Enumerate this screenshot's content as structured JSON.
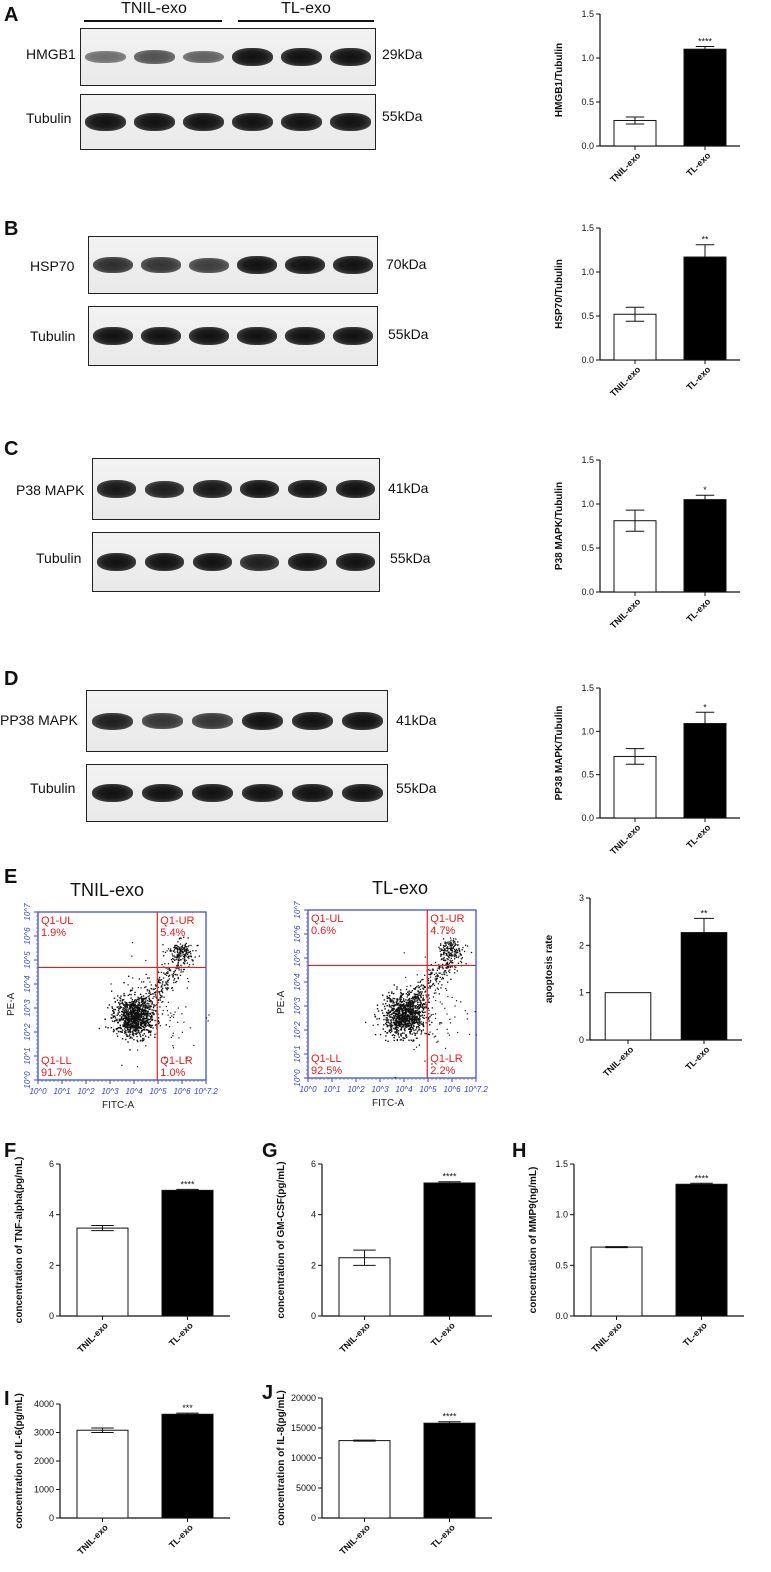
{
  "panels": {
    "A": {
      "letter": "A",
      "groups": [
        "TNIL-exo",
        "TL-exo"
      ],
      "rows": [
        {
          "protein": "HMGB1",
          "kda": "29kDa",
          "intensity": [
            0.35,
            0.55,
            0.45,
            1.0,
            1.0,
            1.0
          ]
        },
        {
          "protein": "Tubulin",
          "kda": "55kDa",
          "intensity": [
            1.0,
            1.0,
            1.0,
            1.0,
            1.0,
            1.0
          ]
        }
      ]
    },
    "B": {
      "letter": "B",
      "rows": [
        {
          "protein": "HSP70",
          "kda": "70kDa",
          "intensity": [
            0.8,
            0.75,
            0.7,
            1.0,
            1.0,
            1.0
          ]
        },
        {
          "protein": "Tubulin",
          "kda": "55kDa",
          "intensity": [
            1.0,
            1.0,
            1.0,
            1.0,
            1.0,
            1.0
          ]
        }
      ]
    },
    "C": {
      "letter": "C",
      "rows": [
        {
          "protein": "P38 MAPK",
          "kda": "41kDa",
          "intensity": [
            0.95,
            0.9,
            0.95,
            1.0,
            1.0,
            1.0
          ]
        },
        {
          "protein": "Tubulin",
          "kda": "55kDa",
          "intensity": [
            1.0,
            1.0,
            1.0,
            0.9,
            1.0,
            1.0
          ]
        }
      ]
    },
    "D": {
      "letter": "D",
      "rows": [
        {
          "protein": "PP38 MAPK",
          "kda": "41kDa",
          "intensity": [
            0.9,
            0.75,
            0.75,
            1.0,
            1.0,
            1.0
          ]
        },
        {
          "protein": "Tubulin",
          "kda": "55kDa",
          "intensity": [
            1.0,
            1.0,
            1.0,
            1.0,
            1.0,
            1.0
          ]
        }
      ]
    },
    "E": {
      "letter": "E",
      "flow": [
        {
          "title": "TNIL-exo",
          "UL": "Q1-UL",
          "UL_pct": "1.9%",
          "UR": "Q1-UR",
          "UR_pct": "5.4%",
          "LL": "Q1-LL",
          "LL_pct": "91.7%",
          "LR": "Q1-LR",
          "LR_pct": "1.0%"
        },
        {
          "title": "TL-exo",
          "UL": "Q1-UL",
          "UL_pct": "0.6%",
          "UR": "Q1-UR",
          "UR_pct": "4.7%",
          "LL": "Q1-LL",
          "LL_pct": "92.5%",
          "LR": "Q1-LR",
          "LR_pct": "2.2%"
        }
      ],
      "flow_xlabel": "FITC-A",
      "flow_ylabel": "PE-A",
      "flow_xticks": [
        "10^0",
        "10^1",
        "10^2",
        "10^3",
        "10^4",
        "10^5",
        "10^6",
        "10^7.2"
      ],
      "flow_yticks": [
        "10^0",
        "10^1",
        "10^2",
        "10^3",
        "10^4",
        "10^5",
        "10^6",
        "10^7"
      ]
    },
    "F": {
      "letter": "F"
    },
    "G": {
      "letter": "G"
    },
    "H": {
      "letter": "H"
    },
    "I": {
      "letter": "I"
    },
    "J": {
      "letter": "J"
    }
  },
  "chart_data": [
    {
      "id": "A",
      "type": "bar",
      "categories": [
        "TNIL-exo",
        "TL-exo"
      ],
      "values": [
        0.29,
        1.1
      ],
      "errors": [
        0.04,
        0.03
      ],
      "significance": "****",
      "ylabel": "HMGB1/Tubulin",
      "ylim": [
        0,
        1.5
      ],
      "yticks": [
        "0.0",
        "0.5",
        "1.0",
        "1.5"
      ],
      "fills": [
        "#ffffff",
        "#000000"
      ]
    },
    {
      "id": "B",
      "type": "bar",
      "categories": [
        "TNIL-exo",
        "TL-exo"
      ],
      "values": [
        0.52,
        1.17
      ],
      "errors": [
        0.08,
        0.14
      ],
      "significance": "**",
      "ylabel": "HSP70/Tubulin",
      "ylim": [
        0,
        1.5
      ],
      "yticks": [
        "0.0",
        "0.5",
        "1.0",
        "1.5"
      ],
      "fills": [
        "#ffffff",
        "#000000"
      ]
    },
    {
      "id": "C",
      "type": "bar",
      "categories": [
        "TNIL-exo",
        "TL-exo"
      ],
      "values": [
        0.81,
        1.05
      ],
      "errors": [
        0.12,
        0.05
      ],
      "significance": "*",
      "ylabel": "P38 MAPK/Tubulin",
      "ylim": [
        0,
        1.5
      ],
      "yticks": [
        "0.0",
        "0.5",
        "1.0",
        "1.5"
      ],
      "fills": [
        "#ffffff",
        "#000000"
      ]
    },
    {
      "id": "D",
      "type": "bar",
      "categories": [
        "TNIL-exo",
        "TL-exo"
      ],
      "values": [
        0.71,
        1.09
      ],
      "errors": [
        0.09,
        0.13
      ],
      "significance": "*",
      "ylabel": "PP38 MAPK/Tubulin",
      "ylim": [
        0,
        1.5
      ],
      "yticks": [
        "0.0",
        "0.5",
        "1.0",
        "1.5"
      ],
      "fills": [
        "#ffffff",
        "#000000"
      ]
    },
    {
      "id": "E",
      "type": "bar",
      "categories": [
        "TNIL-exo",
        "TL-exo"
      ],
      "values": [
        1.0,
        2.27
      ],
      "errors": [
        0,
        0.3
      ],
      "significance": "**",
      "ylabel": "apoptosis rate",
      "ylim": [
        0,
        3
      ],
      "yticks": [
        "0",
        "1",
        "2",
        "3"
      ],
      "fills": [
        "#ffffff",
        "#000000"
      ]
    },
    {
      "id": "F",
      "type": "bar",
      "categories": [
        "TNIL-exo",
        "TL-exo"
      ],
      "values": [
        3.47,
        4.96
      ],
      "errors": [
        0.1,
        0.04
      ],
      "significance": "****",
      "ylabel": "concentration of TNF-alpha(pg/mL)",
      "ylim": [
        0,
        6
      ],
      "yticks": [
        "0",
        "2",
        "4",
        "6"
      ],
      "fills": [
        "#ffffff",
        "#000000"
      ]
    },
    {
      "id": "G",
      "type": "bar",
      "categories": [
        "TNIL-exo",
        "TL-exo"
      ],
      "values": [
        2.3,
        5.25
      ],
      "errors": [
        0.3,
        0.05
      ],
      "significance": "****",
      "ylabel": "concentration of GM-CSF(pg/mL)",
      "ylim": [
        0,
        6
      ],
      "yticks": [
        "0",
        "2",
        "4",
        "6"
      ],
      "fills": [
        "#ffffff",
        "#000000"
      ]
    },
    {
      "id": "H",
      "type": "bar",
      "categories": [
        "TNIL-exo",
        "TL-exo"
      ],
      "values": [
        0.68,
        1.3
      ],
      "errors": [
        0.005,
        0.01
      ],
      "significance": "****",
      "ylabel": "concentration of MMP9(ng/mL)",
      "ylim": [
        0,
        1.5
      ],
      "yticks": [
        "0.0",
        "0.5",
        "1.0",
        "1.5"
      ],
      "fills": [
        "#ffffff",
        "#000000"
      ]
    },
    {
      "id": "I",
      "type": "bar",
      "categories": [
        "TNIL-exo",
        "TL-exo"
      ],
      "values": [
        3080,
        3640
      ],
      "errors": [
        80,
        40
      ],
      "significance": "***",
      "ylabel": "concentration of IL-6(pg/mL)",
      "ylim": [
        0,
        4000
      ],
      "yticks": [
        "0",
        "1000",
        "2000",
        "3000",
        "4000"
      ],
      "fills": [
        "#ffffff",
        "#000000"
      ]
    },
    {
      "id": "J",
      "type": "bar",
      "categories": [
        "TNIL-exo",
        "TL-exo"
      ],
      "values": [
        12900,
        15800
      ],
      "errors": [
        80,
        250
      ],
      "significance": "****",
      "ylabel": "concentration of IL-8(pg/mL)",
      "ylim": [
        0,
        20000
      ],
      "yticks": [
        "0",
        "5000",
        "10000",
        "15000",
        "20000"
      ],
      "fills": [
        "#ffffff",
        "#000000"
      ]
    }
  ]
}
